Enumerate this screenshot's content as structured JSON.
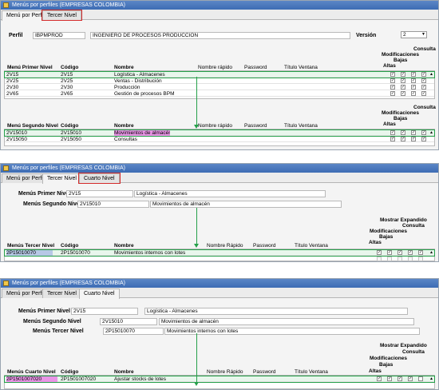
{
  "app_title": "Menús por perfiles (EMPRESAS COLOMBIA)",
  "p1": {
    "tabs": [
      "Menú por Perfil",
      "Tercer Nivel"
    ],
    "perfil_label": "Perfil",
    "perfil_code": "IBPMPROD",
    "perfil_name": "INGENIERO DE PROCESOS PRODUCCION",
    "version_label": "Versión",
    "version_value": "2",
    "perm_headers": [
      "Consulta",
      "Modificaciones",
      "Bajas",
      "Altas"
    ],
    "grid1": {
      "headers": [
        "Menú Primer Nivel",
        "Código",
        "Nombre",
        "Nombre rápido",
        "Password",
        "Título Ventana"
      ],
      "rows": [
        {
          "menu": "2V15",
          "code": "2V15",
          "name": "Logística - Almacenes"
        },
        {
          "menu": "2V25",
          "code": "2V25",
          "name": "Ventas - Distribución"
        },
        {
          "menu": "2V30",
          "code": "2V30",
          "name": "Producción"
        },
        {
          "menu": "2V65",
          "code": "2V65",
          "name": "Gestión de procesos BPM"
        }
      ]
    },
    "grid2": {
      "headers": [
        "Menú Segundo Nivel",
        "Código",
        "Nombre",
        "Nombre rápido",
        "Password",
        "Título Ventana"
      ],
      "rows": [
        {
          "menu": "2V15010",
          "code": "2V15010",
          "name": "Movimientos de almacén"
        },
        {
          "menu": "2V15050",
          "code": "2V15050",
          "name": "Consultas"
        }
      ]
    }
  },
  "p2": {
    "tabs": [
      "Menú por Perfil",
      "Tercer Nivel",
      "Cuarto Nivel"
    ],
    "f1_label": "Menús Primer Nivel",
    "f1_code": "2V15",
    "f1_name": "Logística - Almacenes",
    "f2_label": "Menús Segundo Nivel",
    "f2_code": "2V15010",
    "f2_name": "Movimientos de almacén",
    "perm_headers": [
      "Mostrar Expandido",
      "Consulta",
      "Modificaciones",
      "Bajas",
      "Altas"
    ],
    "grid": {
      "headers": [
        "Menús Tercer Nivel",
        "Código",
        "Nombre",
        "Nombre Rápido",
        "Password",
        "Título Ventana"
      ],
      "rows": [
        {
          "menu": "2P15010070",
          "code": "2P15010070",
          "name": "Movimientos internos con lotes"
        }
      ]
    }
  },
  "p3": {
    "tabs": [
      "Menú por Perfil",
      "Tercer Nivel",
      "Cuarto Nivel"
    ],
    "f1_label": "Menús Primer Nivel",
    "f1_code": "2V15",
    "f1_name": "Logística - Almacenes",
    "f2_label": "Menús Segundo Nivel",
    "f2_code": "2V15010",
    "f2_name": "Movimientos de almacén",
    "f3_label": "Menús Tercer Nivel",
    "f3_code": "2P15010070",
    "f3_name": "Movimientos internos con lotes",
    "perm_headers": [
      "Mostrar Expandido",
      "Consulta",
      "Modificaciones",
      "Bajas",
      "Altas"
    ],
    "grid": {
      "headers": [
        "Menús Cuarto Nivel",
        "Código",
        "Nombre",
        "Nombre Rápido",
        "Password",
        "Título Ventana"
      ],
      "rows": [
        {
          "menu": "2P1501007020",
          "code": "2P1501007020",
          "name": "Ajustar stocks de lotes"
        }
      ]
    }
  }
}
